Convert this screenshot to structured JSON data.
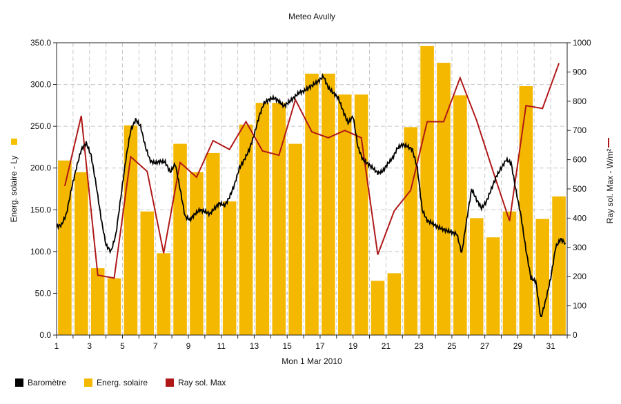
{
  "chart_data": {
    "type": "bar+line",
    "title": "Meteo  Avully",
    "xlabel": "Mon 1 Mar 2010",
    "ylabel_left": "Energ. solaire - Ly",
    "ylabel_right": "Ray sol. Max - W/m²",
    "xlim": [
      1,
      32
    ],
    "ylim_left": [
      0,
      350
    ],
    "ylim_right": [
      0,
      1000
    ],
    "x_ticks": [
      "1",
      "3",
      "5",
      "7",
      "9",
      "11",
      "13",
      "15",
      "17",
      "19",
      "21",
      "23",
      "25",
      "27",
      "29",
      "31"
    ],
    "y_left_ticks": [
      "0.0",
      "50.0",
      "100.0",
      "150.0",
      "200.0",
      "250.0",
      "300.0",
      "350.0"
    ],
    "y_right_ticks": [
      "0",
      "100",
      "200",
      "300",
      "400",
      "500",
      "600",
      "700",
      "800",
      "900",
      "1000"
    ],
    "grid": true,
    "colors": {
      "barometre": "#000000",
      "energie": "#f5b800",
      "ray": "#b01818",
      "grid": "#c8c8c8"
    },
    "series": [
      {
        "name": "Energ. solaire",
        "axis": "left",
        "type": "bar",
        "x": [
          1,
          2,
          3,
          4,
          5,
          6,
          7,
          8,
          9,
          10,
          11,
          12,
          13,
          14,
          15,
          16,
          17,
          18,
          19,
          20,
          21,
          22,
          23,
          24,
          25,
          26,
          27,
          28,
          29,
          30,
          31
        ],
        "values": [
          209,
          195,
          80,
          68,
          251,
          148,
          98,
          229,
          195,
          218,
          160,
          252,
          278,
          278,
          229,
          313,
          313,
          288,
          288,
          65,
          74,
          249,
          346,
          326,
          287,
          140,
          117,
          148,
          298,
          139,
          166
        ]
      },
      {
        "name": "Ray sol. Max",
        "axis": "right",
        "type": "line",
        "x": [
          1.5,
          2.5,
          3.5,
          4.5,
          5.5,
          6.5,
          7.5,
          8.5,
          9.5,
          10.5,
          11.5,
          12.5,
          13.5,
          14.5,
          15.5,
          16.5,
          17.5,
          18.5,
          19.5,
          20.5,
          21.5,
          22.5,
          23.5,
          24.5,
          25.5,
          26.5,
          27.5,
          28.5,
          29.5,
          30.5,
          31.5
        ],
        "values": [
          510,
          750,
          205,
          195,
          610,
          560,
          280,
          590,
          540,
          665,
          635,
          730,
          630,
          615,
          805,
          695,
          675,
          700,
          675,
          275,
          425,
          495,
          730,
          730,
          880,
          735,
          560,
          390,
          785,
          775,
          930
        ]
      },
      {
        "name": "Baromètre",
        "axis": "left",
        "type": "line",
        "x": [
          1,
          1.3,
          1.6,
          1.9,
          2.2,
          2.5,
          2.8,
          3.1,
          3.4,
          3.7,
          4.0,
          4.3,
          4.6,
          4.9,
          5.2,
          5.5,
          5.8,
          6.1,
          6.4,
          6.7,
          7.0,
          7.3,
          7.6,
          7.9,
          8.2,
          8.5,
          8.8,
          9.1,
          9.4,
          9.7,
          10.0,
          10.3,
          10.6,
          10.9,
          11.2,
          11.5,
          11.8,
          12.1,
          12.4,
          12.7,
          13.0,
          13.3,
          13.6,
          13.9,
          14.2,
          14.5,
          14.8,
          15.1,
          15.4,
          15.7,
          16.0,
          16.3,
          16.6,
          16.9,
          17.2,
          17.5,
          17.8,
          18.1,
          18.4,
          18.7,
          19.0,
          19.3,
          19.6,
          19.9,
          20.2,
          20.5,
          20.8,
          21.1,
          21.4,
          21.7,
          22.0,
          22.3,
          22.6,
          22.9,
          23.2,
          23.5,
          23.8,
          24.1,
          24.4,
          24.7,
          25.0,
          25.3,
          25.6,
          25.9,
          26.2,
          26.5,
          26.8,
          27.1,
          27.4,
          27.7,
          28.0,
          28.3,
          28.6,
          28.9,
          29.2,
          29.5,
          29.8,
          30.1,
          30.4,
          30.7,
          31.0,
          31.3,
          31.6,
          31.9
        ],
        "values": [
          130,
          132,
          145,
          175,
          200,
          222,
          230,
          215,
          180,
          140,
          108,
          100,
          120,
          165,
          210,
          245,
          258,
          250,
          225,
          208,
          206,
          208,
          207,
          195,
          205,
          175,
          142,
          138,
          145,
          150,
          148,
          145,
          152,
          158,
          155,
          165,
          180,
          200,
          210,
          222,
          240,
          262,
          278,
          282,
          284,
          280,
          274,
          279,
          284,
          290,
          292,
          296,
          300,
          304,
          310,
          296,
          290,
          284,
          268,
          254,
          262,
          225,
          210,
          205,
          200,
          194,
          196,
          205,
          212,
          224,
          228,
          226,
          222,
          200,
          150,
          137,
          134,
          130,
          127,
          125,
          123,
          121,
          98,
          138,
          175,
          162,
          152,
          160,
          175,
          190,
          200,
          210,
          206,
          172,
          142,
          102,
          68,
          64,
          20,
          42,
          68,
          105,
          115,
          110
        ]
      }
    ],
    "legend": [
      {
        "label": "Baromètre",
        "color": "#000000"
      },
      {
        "label": "Energ. solaire",
        "color": "#f5b800"
      },
      {
        "label": "Ray sol. Max",
        "color": "#b01818"
      }
    ],
    "legend_position": "bottom-left"
  }
}
